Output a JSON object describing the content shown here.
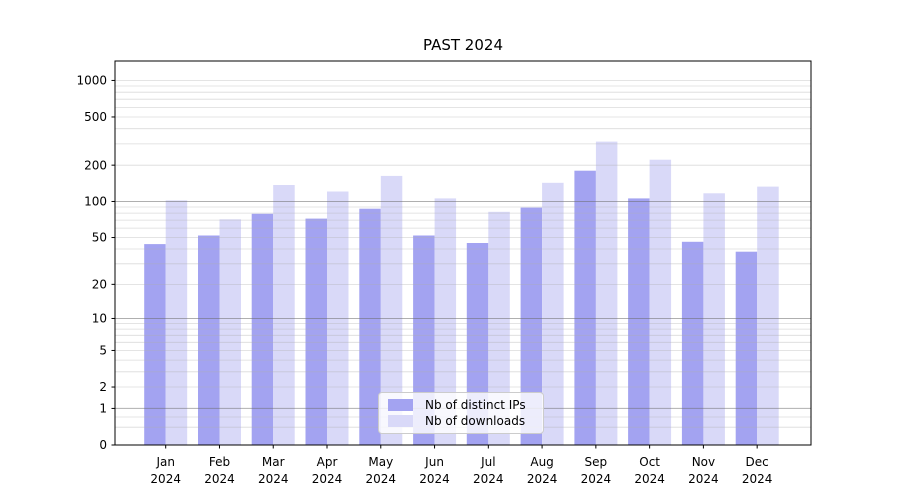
{
  "title": "PAST 2024",
  "chart_data": {
    "type": "bar",
    "title": "PAST 2024",
    "y_scale": "log10(1+y)",
    "categories": [
      "Jan",
      "Feb",
      "Mar",
      "Apr",
      "May",
      "Jun",
      "Jul",
      "Aug",
      "Sep",
      "Oct",
      "Nov",
      "Dec"
    ],
    "category_year": "2024",
    "series": [
      {
        "name": "Nb of distinct IPs",
        "color": "#a3a3f1",
        "values": [
          44,
          52,
          79,
          72,
          87,
          52,
          45,
          89,
          180,
          106,
          46,
          38
        ]
      },
      {
        "name": "Nb of downloads",
        "color": "#d9d9f8",
        "values": [
          102,
          71,
          137,
          121,
          163,
          106,
          82,
          143,
          313,
          222,
          117,
          133
        ]
      }
    ],
    "y_ticks": [
      0,
      1,
      2,
      5,
      10,
      20,
      50,
      100,
      200,
      500,
      1000
    ],
    "ylim": [
      0,
      1430
    ],
    "grid": {
      "major": [
        1,
        10,
        100
      ],
      "minor": [
        0.4,
        0.7,
        2,
        3,
        4,
        5,
        6,
        7,
        8,
        9,
        20,
        30,
        40,
        50,
        60,
        70,
        80,
        90,
        200,
        300,
        400,
        500,
        600,
        700,
        800,
        900,
        1000
      ],
      "drawn_over_bars": true
    },
    "legend_position": "lower-center-inside",
    "colors": {
      "spine": "#000000",
      "major_grid": "rgba(110,110,110,0.55)",
      "minor_grid": "rgba(175,175,175,0.45)",
      "text": "#000000"
    }
  }
}
